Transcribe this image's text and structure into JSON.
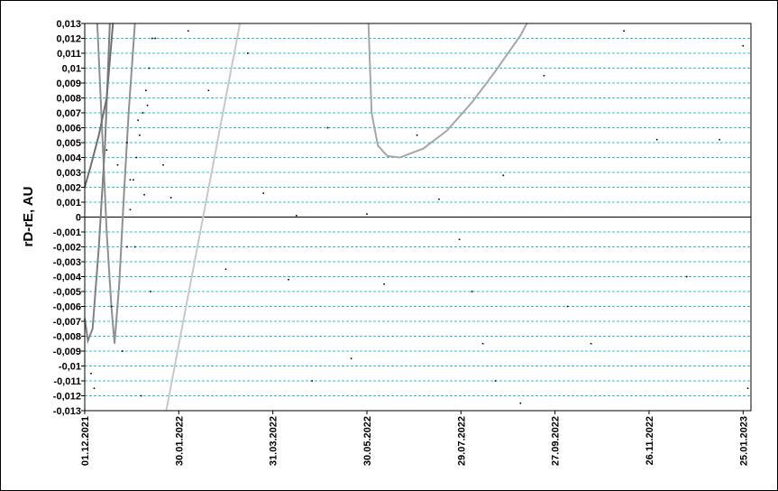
{
  "chart_data": {
    "type": "scatter",
    "ylabel": "rD-rE, AU",
    "xlim": [
      "01.12.2021",
      "30.01.2023"
    ],
    "xticks": [
      "01.12.2021",
      "30.01.2022",
      "31.03.2022",
      "30.05.2022",
      "29.07.2022",
      "27.09.2022",
      "26.11.2022",
      "25.01.2023"
    ],
    "ylim": [
      -0.013,
      0.013
    ],
    "yticks": [
      {
        "value": -0.013,
        "label": "-0,013"
      },
      {
        "value": -0.012,
        "label": "-0,012"
      },
      {
        "value": -0.011,
        "label": "-0,011"
      },
      {
        "value": -0.01,
        "label": "-0,01"
      },
      {
        "value": -0.009,
        "label": "-0,009"
      },
      {
        "value": -0.008,
        "label": "-0,008"
      },
      {
        "value": -0.007,
        "label": "-0,007"
      },
      {
        "value": -0.006,
        "label": "-0,006"
      },
      {
        "value": -0.005,
        "label": "-0,005"
      },
      {
        "value": -0.004,
        "label": "-0,004"
      },
      {
        "value": -0.003,
        "label": "-0,003"
      },
      {
        "value": -0.002,
        "label": "-0,002"
      },
      {
        "value": -0.001,
        "label": "-0,001"
      },
      0,
      {
        "value": 0.001,
        "label": "0,001"
      },
      {
        "value": 0.002,
        "label": "0,002"
      },
      {
        "value": 0.003,
        "label": "0,003"
      },
      {
        "value": 0.004,
        "label": "0,004"
      },
      {
        "value": 0.005,
        "label": "0,005"
      },
      {
        "value": 0.006,
        "label": "0,006"
      },
      {
        "value": 0.007,
        "label": "0,007"
      },
      {
        "value": 0.008,
        "label": "0,008"
      },
      {
        "value": 0.009,
        "label": "0,009"
      },
      {
        "value": 0.01,
        "label": "0,01"
      },
      {
        "value": 0.011,
        "label": "0,011"
      },
      {
        "value": 0.012,
        "label": "0,012"
      },
      {
        "value": 0.013,
        "label": "0,013"
      }
    ],
    "grid": true,
    "series": [
      {
        "color": "#a6a6a6",
        "style": "line",
        "x": [
          "31.05.2022",
          "02.06.2022",
          "06.06.2022",
          "12.06.2022",
          "20.06.2022",
          "05.07.2022",
          "20.07.2022",
          "05.08.2022",
          "20.08.2022",
          "05.09.2022",
          "09.09.2022"
        ],
        "values": [
          0.013,
          0.007,
          0.0048,
          0.0041,
          0.004,
          0.0046,
          0.0058,
          0.0077,
          0.0098,
          0.0122,
          0.013
        ]
      },
      {
        "color": "#c8c8c8",
        "style": "line",
        "x": [
          "22.01.2022",
          "10.03.2022"
        ],
        "values": [
          -0.013,
          0.013
        ]
      },
      {
        "color": "#909090",
        "style": "line",
        "x": [
          "09.12.2021",
          "12.12.2021",
          "15.12.2021",
          "18.12.2021",
          "20.12.2021",
          "23.12.2021",
          "26.12.2021",
          "29.12.2021",
          "02.01.2022"
        ],
        "values": [
          0.013,
          0.006,
          -0.001,
          -0.006,
          -0.0085,
          -0.0045,
          0.0015,
          0.007,
          0.013
        ]
      },
      {
        "color": "#808080",
        "style": "line",
        "x": [
          "01.12.2021",
          "03.12.2021",
          "06.12.2021",
          "10.12.2021",
          "14.12.2021",
          "17.12.2021"
        ],
        "values": [
          -0.0068,
          -0.0083,
          -0.0075,
          -0.002,
          0.005,
          0.013
        ]
      },
      {
        "color": "#707070",
        "style": "line",
        "x": [
          "01.12.2021",
          "05.12.2021",
          "10.12.2021",
          "15.12.2021",
          "19.12.2021"
        ],
        "values": [
          0.002,
          0.0035,
          0.0055,
          0.008,
          0.013
        ]
      },
      {
        "color": "#000000",
        "style": "dots",
        "x": [
          "05.12.2021",
          "07.12.2021",
          "15.12.2021",
          "18.12.2021",
          "22.12.2021",
          "25.12.2021",
          "28.12.2021",
          "30.12.2021",
          "02.01.2022",
          "04.01.2022",
          "06.01.2022",
          "08.01.2022",
          "10.01.2022",
          "12.01.2022",
          "15.01.2022",
          "20.01.2022",
          "25.01.2022",
          "05.02.2022",
          "18.02.2022",
          "01.03.2022",
          "15.03.2022",
          "25.03.2022",
          "10.04.2022",
          "15.04.2022",
          "25.04.2022",
          "05.05.2022",
          "20.05.2022",
          "30.05.2022",
          "10.06.2022",
          "01.07.2022",
          "15.07.2022",
          "28.07.2022",
          "05.08.2022",
          "12.08.2022",
          "20.08.2022",
          "25.08.2022",
          "05.09.2022",
          "20.09.2022",
          "05.10.2022",
          "20.10.2022",
          "10.11.2022",
          "01.12.2022",
          "20.12.2022",
          "10.01.2023",
          "25.01.2023",
          "28.01.2023"
        ],
        "values": [
          -0.0105,
          -0.0115,
          0.0045,
          -0.006,
          0.0035,
          -0.009,
          0.005,
          0.0025,
          -0.002,
          0.0065,
          -0.012,
          0.0015,
          0.0075,
          -0.005,
          0.012,
          0.0035,
          0.0013,
          0.0125,
          0.0085,
          -0.0035,
          0.011,
          0.0016,
          -0.0042,
          0.0001,
          -0.011,
          0.006,
          -0.0095,
          0.0002,
          -0.0045,
          0.0055,
          0.0012,
          -0.0015,
          -0.005,
          -0.0085,
          -0.011,
          0.0028,
          -0.0125,
          0.0095,
          -0.006,
          -0.0085,
          0.0125,
          0.0052,
          -0.004,
          0.0052,
          0.0115,
          -0.0115
        ]
      },
      {
        "color": "#000000",
        "style": "dots",
        "x": [
          "28.12.2021",
          "30.12.2021",
          "01.01.2022",
          "03.01.2022",
          "05.01.2022",
          "07.01.2022",
          "09.01.2022",
          "11.01.2022",
          "13.01.2022"
        ],
        "values": [
          -0.002,
          0.0005,
          0.0025,
          0.004,
          0.0055,
          0.007,
          0.0085,
          0.01,
          0.012
        ]
      }
    ]
  }
}
